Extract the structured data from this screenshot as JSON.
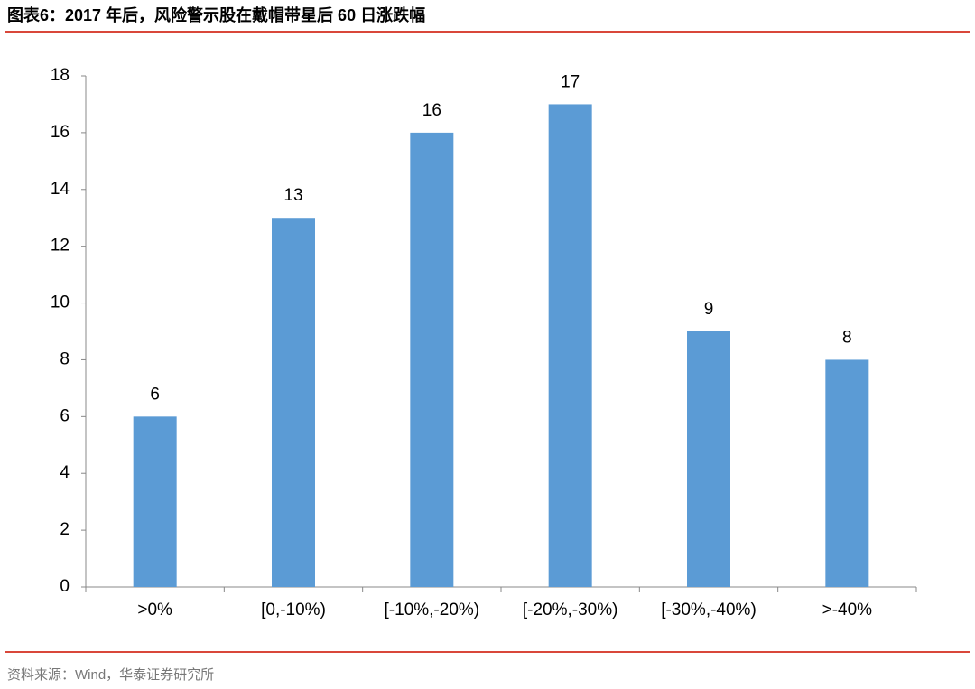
{
  "chart_data": {
    "type": "bar",
    "title": "图表6：2017 年后，风险警示股在戴帽带星后 60 日涨跌幅",
    "source": "资料来源：Wind，华泰证券研究所",
    "categories": [
      ">0%",
      "[0,-10%)",
      "[-10%,-20%)",
      "[-20%,-30%)",
      "[-30%,-40%)",
      ">-40%"
    ],
    "values": [
      6,
      13,
      16,
      17,
      9,
      8
    ],
    "color": "#5b9bd5",
    "ylim": [
      0,
      18
    ],
    "yticks": [
      0,
      2,
      4,
      6,
      8,
      10,
      12,
      14,
      16,
      18
    ],
    "grid": false
  }
}
